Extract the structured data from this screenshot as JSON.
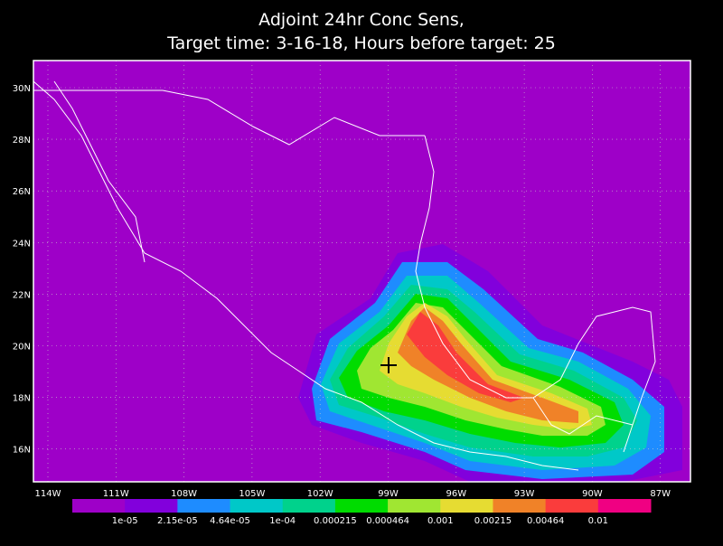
{
  "header": {
    "title": [
      "Adjoint 24hr Conc Sens,",
      "Target time: 3-16-18, Hours before target: 25"
    ]
  },
  "map": {
    "background": "#9e00c8",
    "lat_labels": [
      "30N",
      "28N",
      "26N",
      "24N",
      "22N",
      "20N",
      "18N",
      "16N"
    ],
    "lon_labels": [
      "114W",
      "111W",
      "108W",
      "105W",
      "102W",
      "99W",
      "96W",
      "93W",
      "90W",
      "87W"
    ]
  },
  "colorbar": {
    "colors": [
      "#9e00c8",
      "#8200dc",
      "#1e8cff",
      "#00c8c8",
      "#00d28c",
      "#00dc00",
      "#a0e632",
      "#e6dc32",
      "#f08228",
      "#fa3c3c",
      "#f00082"
    ],
    "labels": [
      "1e-05",
      "2.15e-05",
      "4.64e-05",
      "1e-04",
      "0.000215",
      "0.000464",
      "0.001",
      "0.00215",
      "0.00464",
      "0.01"
    ]
  }
}
